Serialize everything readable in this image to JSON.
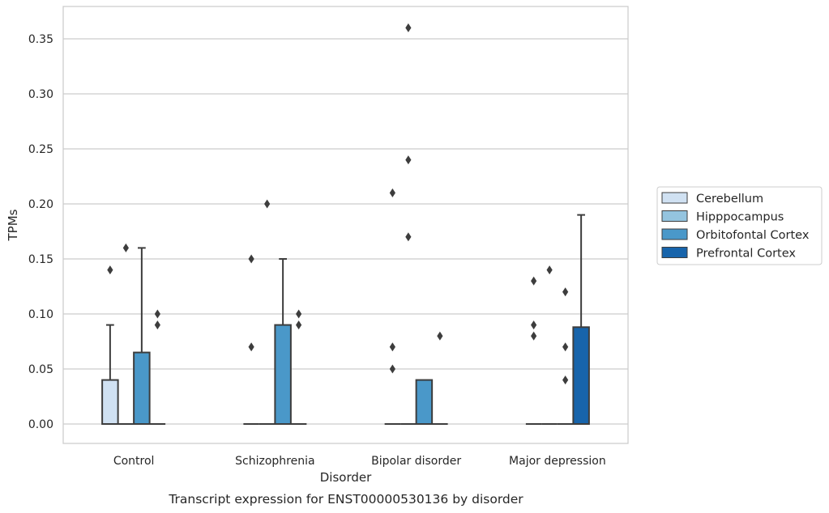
{
  "caption": "Transcript expression for ENST00000530136 by disorder",
  "chart_data": {
    "type": "box",
    "title": "",
    "xlabel": "Disorder",
    "ylabel": "TPMs",
    "ylim": [
      -0.018,
      0.378
    ],
    "yticks": [
      "0.00",
      "0.05",
      "0.10",
      "0.15",
      "0.20",
      "0.25",
      "0.30",
      "0.35"
    ],
    "grid": "horizontal",
    "legend_position": "right",
    "categories": [
      "Control",
      "Schizophrenia",
      "Bipolar disorder",
      "Major depression"
    ],
    "series": [
      {
        "name": "Cerebellum",
        "color": "#d0e1f2",
        "boxes": [
          {
            "q1": 0.0,
            "median": 0.0,
            "q3": 0.04,
            "whisker_low": 0.0,
            "whisker_high": 0.09,
            "outliers": [
              0.14
            ]
          },
          {
            "q1": 0.0,
            "median": 0.0,
            "q3": 0.0,
            "whisker_low": 0.0,
            "whisker_high": 0.0,
            "outliers": [
              0.07,
              0.15
            ]
          },
          {
            "q1": 0.0,
            "median": 0.0,
            "q3": 0.0,
            "whisker_low": 0.0,
            "whisker_high": 0.0,
            "outliers": [
              0.05,
              0.07,
              0.21
            ]
          },
          {
            "q1": 0.0,
            "median": 0.0,
            "q3": 0.0,
            "whisker_low": 0.0,
            "whisker_high": 0.0,
            "outliers": [
              0.08,
              0.09,
              0.13
            ]
          }
        ]
      },
      {
        "name": "Hipppocampus",
        "color": "#94c4df",
        "boxes": [
          {
            "q1": 0.0,
            "median": 0.0,
            "q3": 0.0,
            "whisker_low": 0.0,
            "whisker_high": 0.0,
            "outliers": [
              0.16
            ]
          },
          {
            "q1": 0.0,
            "median": 0.0,
            "q3": 0.0,
            "whisker_low": 0.0,
            "whisker_high": 0.0,
            "outliers": [
              0.2
            ]
          },
          {
            "q1": 0.0,
            "median": 0.0,
            "q3": 0.0,
            "whisker_low": 0.0,
            "whisker_high": 0.0,
            "outliers": [
              0.17,
              0.24,
              0.36
            ]
          },
          {
            "q1": 0.0,
            "median": 0.0,
            "q3": 0.0,
            "whisker_low": 0.0,
            "whisker_high": 0.0,
            "outliers": [
              0.14
            ]
          }
        ]
      },
      {
        "name": "Orbitofontal Cortex",
        "color": "#4a98c9",
        "boxes": [
          {
            "q1": 0.0,
            "median": 0.0,
            "q3": 0.065,
            "whisker_low": 0.0,
            "whisker_high": 0.16,
            "outliers": []
          },
          {
            "q1": 0.0,
            "median": 0.0,
            "q3": 0.09,
            "whisker_low": 0.0,
            "whisker_high": 0.15,
            "outliers": []
          },
          {
            "q1": 0.0,
            "median": 0.0,
            "q3": 0.04,
            "whisker_low": 0.0,
            "whisker_high": 0.04,
            "outliers": []
          },
          {
            "q1": 0.0,
            "median": 0.0,
            "q3": 0.0,
            "whisker_low": 0.0,
            "whisker_high": 0.0,
            "outliers": [
              0.04,
              0.07,
              0.12
            ]
          }
        ]
      },
      {
        "name": "Prefrontal Cortex",
        "color": "#1764ab",
        "boxes": [
          {
            "q1": 0.0,
            "median": 0.0,
            "q3": 0.0,
            "whisker_low": 0.0,
            "whisker_high": 0.0,
            "outliers": [
              0.09,
              0.1
            ]
          },
          {
            "q1": 0.0,
            "median": 0.0,
            "q3": 0.0,
            "whisker_low": 0.0,
            "whisker_high": 0.0,
            "outliers": [
              0.09,
              0.1
            ]
          },
          {
            "q1": 0.0,
            "median": 0.0,
            "q3": 0.0,
            "whisker_low": 0.0,
            "whisker_high": 0.0,
            "outliers": [
              0.08
            ]
          },
          {
            "q1": 0.0,
            "median": 0.0,
            "q3": 0.088,
            "whisker_low": 0.0,
            "whisker_high": 0.19,
            "outliers": []
          }
        ]
      }
    ]
  }
}
